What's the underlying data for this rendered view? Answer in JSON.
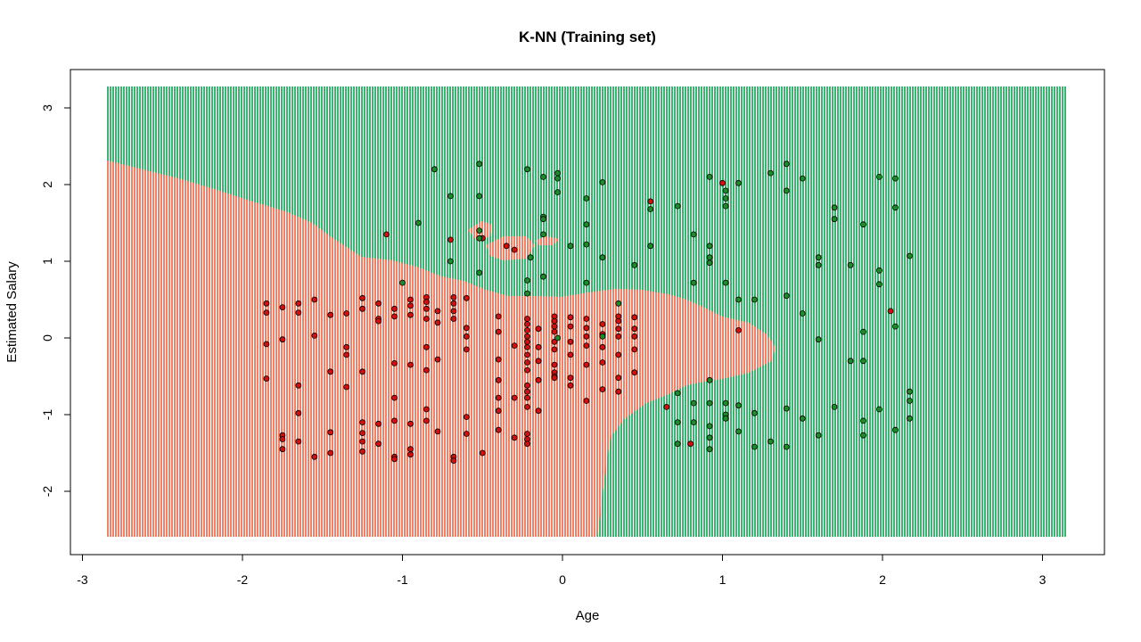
{
  "chart_data": {
    "type": "scatter",
    "title": "K-NN (Training set)",
    "xlabel": "Age",
    "ylabel": "Estimated Salary",
    "xlim": [
      -3,
      3
    ],
    "ylim": [
      -3,
      3
    ],
    "x_ticks": [
      -3,
      -2,
      -1,
      0,
      1,
      2,
      3
    ],
    "y_ticks": [
      -2,
      -1,
      0,
      1,
      2,
      3
    ],
    "grid": false,
    "legend": "none",
    "colors": {
      "region_0": "#f08068",
      "region_1": "#3cb371",
      "point_0": "#d01010",
      "point_1": "#1f8a2a",
      "region_stripe_0": "#ffffff",
      "region_stripe_1": "#ffffff"
    },
    "series": [
      {
        "class": 0,
        "points": [
          [
            -1.85,
            0.45
          ],
          [
            -1.85,
            0.33
          ],
          [
            -1.85,
            -0.08
          ],
          [
            -1.85,
            -0.53
          ],
          [
            -1.75,
            0.4
          ],
          [
            -1.75,
            -0.02
          ],
          [
            -1.75,
            -1.27
          ],
          [
            -1.75,
            -1.32
          ],
          [
            -1.75,
            -1.45
          ],
          [
            -1.65,
            0.45
          ],
          [
            -1.65,
            0.33
          ],
          [
            -1.65,
            -0.62
          ],
          [
            -1.65,
            -0.98
          ],
          [
            -1.65,
            -1.35
          ],
          [
            -1.55,
            0.5
          ],
          [
            -1.55,
            0.03
          ],
          [
            -1.55,
            -1.55
          ],
          [
            -1.45,
            0.3
          ],
          [
            -1.45,
            -0.44
          ],
          [
            -1.45,
            -1.23
          ],
          [
            -1.45,
            -1.5
          ],
          [
            -1.35,
            0.32
          ],
          [
            -1.35,
            -0.12
          ],
          [
            -1.35,
            -0.22
          ],
          [
            -1.35,
            -0.64
          ],
          [
            -1.25,
            0.52
          ],
          [
            -1.25,
            0.38
          ],
          [
            -1.25,
            -0.44
          ],
          [
            -1.25,
            -1.1
          ],
          [
            -1.25,
            -1.24
          ],
          [
            -1.25,
            -1.35
          ],
          [
            -1.25,
            -1.48
          ],
          [
            -1.15,
            0.45
          ],
          [
            -1.15,
            0.25
          ],
          [
            -1.15,
            0.22
          ],
          [
            -1.15,
            -1.12
          ],
          [
            -1.15,
            -1.38
          ],
          [
            -1.1,
            1.35
          ],
          [
            -1.05,
            0.38
          ],
          [
            -1.05,
            0.28
          ],
          [
            -1.05,
            -0.33
          ],
          [
            -1.05,
            -0.78
          ],
          [
            -1.05,
            -1.08
          ],
          [
            -1.05,
            -1.55
          ],
          [
            -1.05,
            -1.58
          ],
          [
            -0.95,
            0.5
          ],
          [
            -0.95,
            0.42
          ],
          [
            -0.95,
            0.3
          ],
          [
            -0.95,
            -0.35
          ],
          [
            -0.95,
            -1.12
          ],
          [
            -0.95,
            -1.45
          ],
          [
            -0.95,
            -1.52
          ],
          [
            -0.85,
            0.53
          ],
          [
            -0.85,
            0.47
          ],
          [
            -0.85,
            0.38
          ],
          [
            -0.85,
            0.25
          ],
          [
            -0.85,
            -0.12
          ],
          [
            -0.85,
            -0.42
          ],
          [
            -0.85,
            -0.93
          ],
          [
            -0.85,
            -1.08
          ],
          [
            -0.78,
            0.35
          ],
          [
            -0.78,
            0.2
          ],
          [
            -0.78,
            -0.28
          ],
          [
            -0.78,
            -1.22
          ],
          [
            -0.7,
            1.28
          ],
          [
            -0.68,
            0.53
          ],
          [
            -0.68,
            0.45
          ],
          [
            -0.68,
            0.35
          ],
          [
            -0.68,
            0.25
          ],
          [
            -0.68,
            -1.55
          ],
          [
            -0.68,
            -1.6
          ],
          [
            -0.6,
            0.52
          ],
          [
            -0.6,
            0.13
          ],
          [
            -0.6,
            0.02
          ],
          [
            -0.6,
            -0.15
          ],
          [
            -0.6,
            -1.03
          ],
          [
            -0.6,
            -1.25
          ],
          [
            -0.5,
            1.3
          ],
          [
            -0.5,
            -1.5
          ],
          [
            -0.4,
            0.28
          ],
          [
            -0.4,
            0.08
          ],
          [
            -0.4,
            -0.28
          ],
          [
            -0.4,
            -0.55
          ],
          [
            -0.4,
            -0.78
          ],
          [
            -0.4,
            -0.95
          ],
          [
            -0.4,
            -1.2
          ],
          [
            -0.35,
            1.2
          ],
          [
            -0.3,
            1.15
          ],
          [
            -0.3,
            -0.1
          ],
          [
            -0.3,
            -0.78
          ],
          [
            -0.3,
            -1.3
          ],
          [
            -0.22,
            0.25
          ],
          [
            -0.22,
            0.18
          ],
          [
            -0.22,
            0.1
          ],
          [
            -0.22,
            0.02
          ],
          [
            -0.22,
            -0.05
          ],
          [
            -0.22,
            -0.12
          ],
          [
            -0.22,
            -0.22
          ],
          [
            -0.22,
            -0.32
          ],
          [
            -0.22,
            -0.42
          ],
          [
            -0.22,
            -0.62
          ],
          [
            -0.22,
            -0.7
          ],
          [
            -0.22,
            -0.78
          ],
          [
            -0.22,
            -0.9
          ],
          [
            -0.22,
            -1.25
          ],
          [
            -0.22,
            -1.32
          ],
          [
            -0.22,
            -1.38
          ],
          [
            -0.15,
            0.12
          ],
          [
            -0.15,
            -0.12
          ],
          [
            -0.15,
            -0.3
          ],
          [
            -0.15,
            -0.55
          ],
          [
            -0.15,
            -0.95
          ],
          [
            -0.05,
            0.28
          ],
          [
            -0.05,
            0.22
          ],
          [
            -0.05,
            0.15
          ],
          [
            -0.05,
            0.08
          ],
          [
            -0.05,
            -0.05
          ],
          [
            -0.05,
            -0.15
          ],
          [
            -0.05,
            -0.35
          ],
          [
            -0.05,
            -0.45
          ],
          [
            -0.05,
            -0.5
          ],
          [
            -0.05,
            -0.52
          ],
          [
            0.05,
            0.27
          ],
          [
            0.05,
            0.15
          ],
          [
            0.05,
            -0.05
          ],
          [
            0.05,
            -0.22
          ],
          [
            0.05,
            -0.52
          ],
          [
            0.05,
            -0.62
          ],
          [
            0.15,
            0.25
          ],
          [
            0.15,
            0.13
          ],
          [
            0.15,
            0.02
          ],
          [
            0.15,
            -0.1
          ],
          [
            0.15,
            -0.35
          ],
          [
            0.15,
            -0.82
          ],
          [
            0.25,
            0.18
          ],
          [
            0.25,
            0.05
          ],
          [
            0.25,
            -0.12
          ],
          [
            0.25,
            -0.32
          ],
          [
            0.25,
            -0.67
          ],
          [
            0.35,
            0.28
          ],
          [
            0.35,
            0.22
          ],
          [
            0.35,
            0.12
          ],
          [
            0.35,
            0.02
          ],
          [
            0.35,
            -0.22
          ],
          [
            0.35,
            -0.52
          ],
          [
            0.35,
            -0.7
          ],
          [
            0.45,
            0.27
          ],
          [
            0.45,
            0.12
          ],
          [
            0.45,
            0.02
          ],
          [
            0.45,
            -0.15
          ],
          [
            0.45,
            -0.45
          ],
          [
            0.55,
            1.78
          ],
          [
            0.65,
            -0.9
          ],
          [
            0.8,
            -1.38
          ],
          [
            1.0,
            2.02
          ],
          [
            1.1,
            0.1
          ],
          [
            2.05,
            0.35
          ]
        ]
      },
      {
        "class": 1,
        "points": [
          [
            -1.0,
            0.72
          ],
          [
            -0.9,
            1.5
          ],
          [
            -0.8,
            2.2
          ],
          [
            -0.7,
            1.85
          ],
          [
            -0.7,
            1.0
          ],
          [
            -0.52,
            2.27
          ],
          [
            -0.52,
            1.85
          ],
          [
            -0.52,
            1.4
          ],
          [
            -0.52,
            1.3
          ],
          [
            -0.52,
            0.85
          ],
          [
            -0.22,
            2.2
          ],
          [
            -0.22,
            0.75
          ],
          [
            -0.22,
            0.58
          ],
          [
            -0.2,
            1.05
          ],
          [
            -0.12,
            2.1
          ],
          [
            -0.12,
            1.58
          ],
          [
            -0.12,
            1.55
          ],
          [
            -0.12,
            1.35
          ],
          [
            -0.12,
            0.8
          ],
          [
            -0.03,
            2.15
          ],
          [
            -0.03,
            2.08
          ],
          [
            -0.03,
            1.9
          ],
          [
            -0.03,
            0.0
          ],
          [
            0.05,
            1.2
          ],
          [
            0.15,
            1.82
          ],
          [
            0.15,
            1.48
          ],
          [
            0.15,
            1.22
          ],
          [
            0.15,
            0.72
          ],
          [
            0.25,
            2.03
          ],
          [
            0.25,
            1.05
          ],
          [
            0.35,
            0.45
          ],
          [
            0.45,
            0.95
          ],
          [
            0.55,
            1.68
          ],
          [
            0.55,
            1.2
          ],
          [
            0.25,
            0.02
          ],
          [
            0.72,
            1.72
          ],
          [
            0.72,
            -0.72
          ],
          [
            0.72,
            -1.1
          ],
          [
            0.72,
            -1.38
          ],
          [
            0.82,
            1.35
          ],
          [
            0.82,
            0.72
          ],
          [
            0.82,
            -0.85
          ],
          [
            0.82,
            -1.1
          ],
          [
            0.92,
            2.1
          ],
          [
            0.92,
            1.2
          ],
          [
            0.92,
            1.05
          ],
          [
            0.92,
            0.98
          ],
          [
            0.92,
            -0.55
          ],
          [
            0.92,
            -0.85
          ],
          [
            0.92,
            -1.15
          ],
          [
            0.92,
            -1.3
          ],
          [
            0.92,
            -1.45
          ],
          [
            1.02,
            1.92
          ],
          [
            1.02,
            1.82
          ],
          [
            1.02,
            1.72
          ],
          [
            1.02,
            0.72
          ],
          [
            1.02,
            -0.85
          ],
          [
            1.02,
            -1.0
          ],
          [
            1.02,
            -1.05
          ],
          [
            1.1,
            2.02
          ],
          [
            1.1,
            0.5
          ],
          [
            1.1,
            -0.88
          ],
          [
            1.1,
            -1.22
          ],
          [
            1.2,
            0.5
          ],
          [
            1.2,
            -0.98
          ],
          [
            1.2,
            -1.42
          ],
          [
            1.3,
            2.15
          ],
          [
            1.3,
            -1.35
          ],
          [
            1.4,
            2.27
          ],
          [
            1.4,
            1.92
          ],
          [
            1.4,
            0.55
          ],
          [
            1.4,
            -0.92
          ],
          [
            1.4,
            -1.42
          ],
          [
            1.5,
            2.08
          ],
          [
            1.5,
            0.32
          ],
          [
            1.5,
            -1.05
          ],
          [
            1.6,
            1.05
          ],
          [
            1.6,
            0.95
          ],
          [
            1.6,
            -0.02
          ],
          [
            1.6,
            -1.27
          ],
          [
            1.7,
            1.7
          ],
          [
            1.7,
            1.55
          ],
          [
            1.7,
            -0.9
          ],
          [
            1.8,
            0.95
          ],
          [
            1.8,
            -0.3
          ],
          [
            1.88,
            1.48
          ],
          [
            1.88,
            0.08
          ],
          [
            1.88,
            -0.3
          ],
          [
            1.88,
            -1.08
          ],
          [
            1.88,
            -1.27
          ],
          [
            1.98,
            2.1
          ],
          [
            1.98,
            0.88
          ],
          [
            1.98,
            0.7
          ],
          [
            1.98,
            -0.93
          ],
          [
            2.08,
            2.08
          ],
          [
            2.08,
            1.7
          ],
          [
            2.08,
            0.15
          ],
          [
            2.08,
            -1.2
          ],
          [
            2.17,
            1.07
          ],
          [
            2.17,
            -0.7
          ],
          [
            2.17,
            -0.82
          ],
          [
            2.17,
            -1.05
          ]
        ]
      }
    ]
  }
}
